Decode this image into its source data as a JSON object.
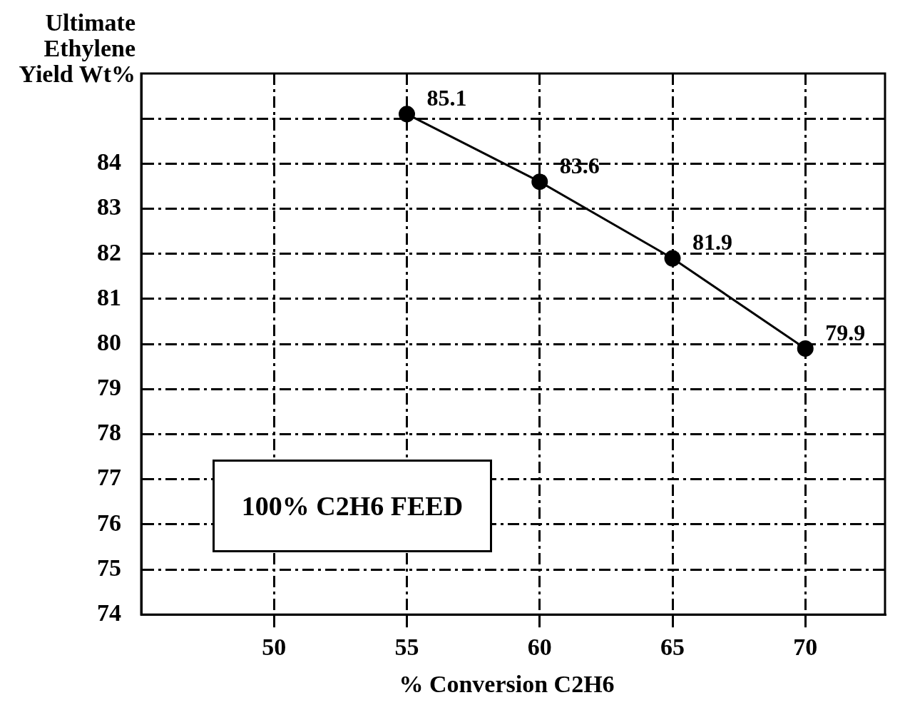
{
  "chart_data": {
    "type": "line",
    "xlabel": "% Conversion C2H6",
    "ylabel": "Ultimate Ethylene Yield Wt%",
    "annotations": [
      "100% C2H6 FEED"
    ],
    "series": [
      {
        "color": "#000000",
        "x": [
          55,
          60,
          65,
          70
        ],
        "values": [
          85.1,
          83.6,
          81.9,
          79.9
        ]
      }
    ],
    "data_labels": true,
    "marker": "circle",
    "line_style": "solid",
    "xlim": [
      45,
      73
    ],
    "xticks": [
      50,
      55,
      60,
      65,
      70
    ],
    "ylim": [
      74,
      86
    ],
    "yticks": [
      74,
      75,
      76,
      77,
      78,
      79,
      80,
      81,
      82,
      83,
      84,
      {
        "value": 85,
        "label": null
      }
    ],
    "grid": true,
    "legend": false
  }
}
